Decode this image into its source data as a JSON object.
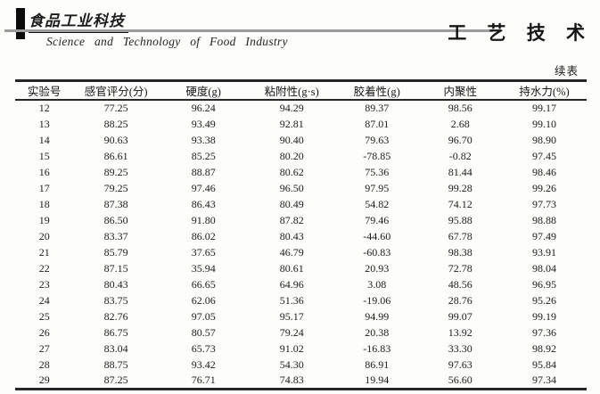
{
  "header": {
    "logo_cn": "食品工业科技",
    "journal_en": "Science and Technology of Food Industry",
    "section_label": "工 艺 技 术"
  },
  "table": {
    "continued_label": "续表",
    "columns": [
      "实验号",
      "感官评分(分)",
      "硬度(g)",
      "粘附性(g·s)",
      "胶着性(g)",
      "内聚性",
      "持水力(%)"
    ],
    "rows": [
      [
        "12",
        "77.25",
        "96.24",
        "94.29",
        "89.37",
        "98.56",
        "99.17"
      ],
      [
        "13",
        "88.25",
        "93.49",
        "92.81",
        "87.01",
        "2.68",
        "99.10"
      ],
      [
        "14",
        "90.63",
        "93.38",
        "90.40",
        "79.63",
        "96.70",
        "98.90"
      ],
      [
        "15",
        "86.61",
        "85.25",
        "80.20",
        "-78.85",
        "-0.82",
        "97.45"
      ],
      [
        "16",
        "89.25",
        "88.87",
        "80.62",
        "75.36",
        "81.44",
        "98.46"
      ],
      [
        "17",
        "79.25",
        "97.46",
        "96.50",
        "97.95",
        "99.28",
        "99.26"
      ],
      [
        "18",
        "87.38",
        "86.43",
        "80.49",
        "54.82",
        "74.12",
        "97.73"
      ],
      [
        "19",
        "86.50",
        "91.80",
        "87.82",
        "79.46",
        "95.88",
        "98.88"
      ],
      [
        "20",
        "83.37",
        "86.02",
        "80.43",
        "-44.60",
        "67.78",
        "97.49"
      ],
      [
        "21",
        "85.79",
        "37.65",
        "46.79",
        "-60.83",
        "98.38",
        "93.91"
      ],
      [
        "22",
        "87.15",
        "35.94",
        "80.61",
        "20.93",
        "72.78",
        "98.04"
      ],
      [
        "23",
        "80.43",
        "66.65",
        "64.96",
        "3.08",
        "48.56",
        "96.95"
      ],
      [
        "24",
        "83.75",
        "62.06",
        "51.36",
        "-19.06",
        "28.76",
        "95.26"
      ],
      [
        "25",
        "82.76",
        "97.05",
        "95.17",
        "94.99",
        "99.07",
        "99.19"
      ],
      [
        "26",
        "86.75",
        "80.57",
        "79.24",
        "20.38",
        "13.92",
        "97.36"
      ],
      [
        "27",
        "83.04",
        "65.73",
        "91.02",
        "-16.83",
        "33.30",
        "98.92"
      ],
      [
        "28",
        "88.75",
        "93.42",
        "54.30",
        "86.91",
        "97.63",
        "95.84"
      ],
      [
        "29",
        "87.25",
        "76.71",
        "74.83",
        "19.94",
        "56.60",
        "97.34"
      ]
    ]
  }
}
